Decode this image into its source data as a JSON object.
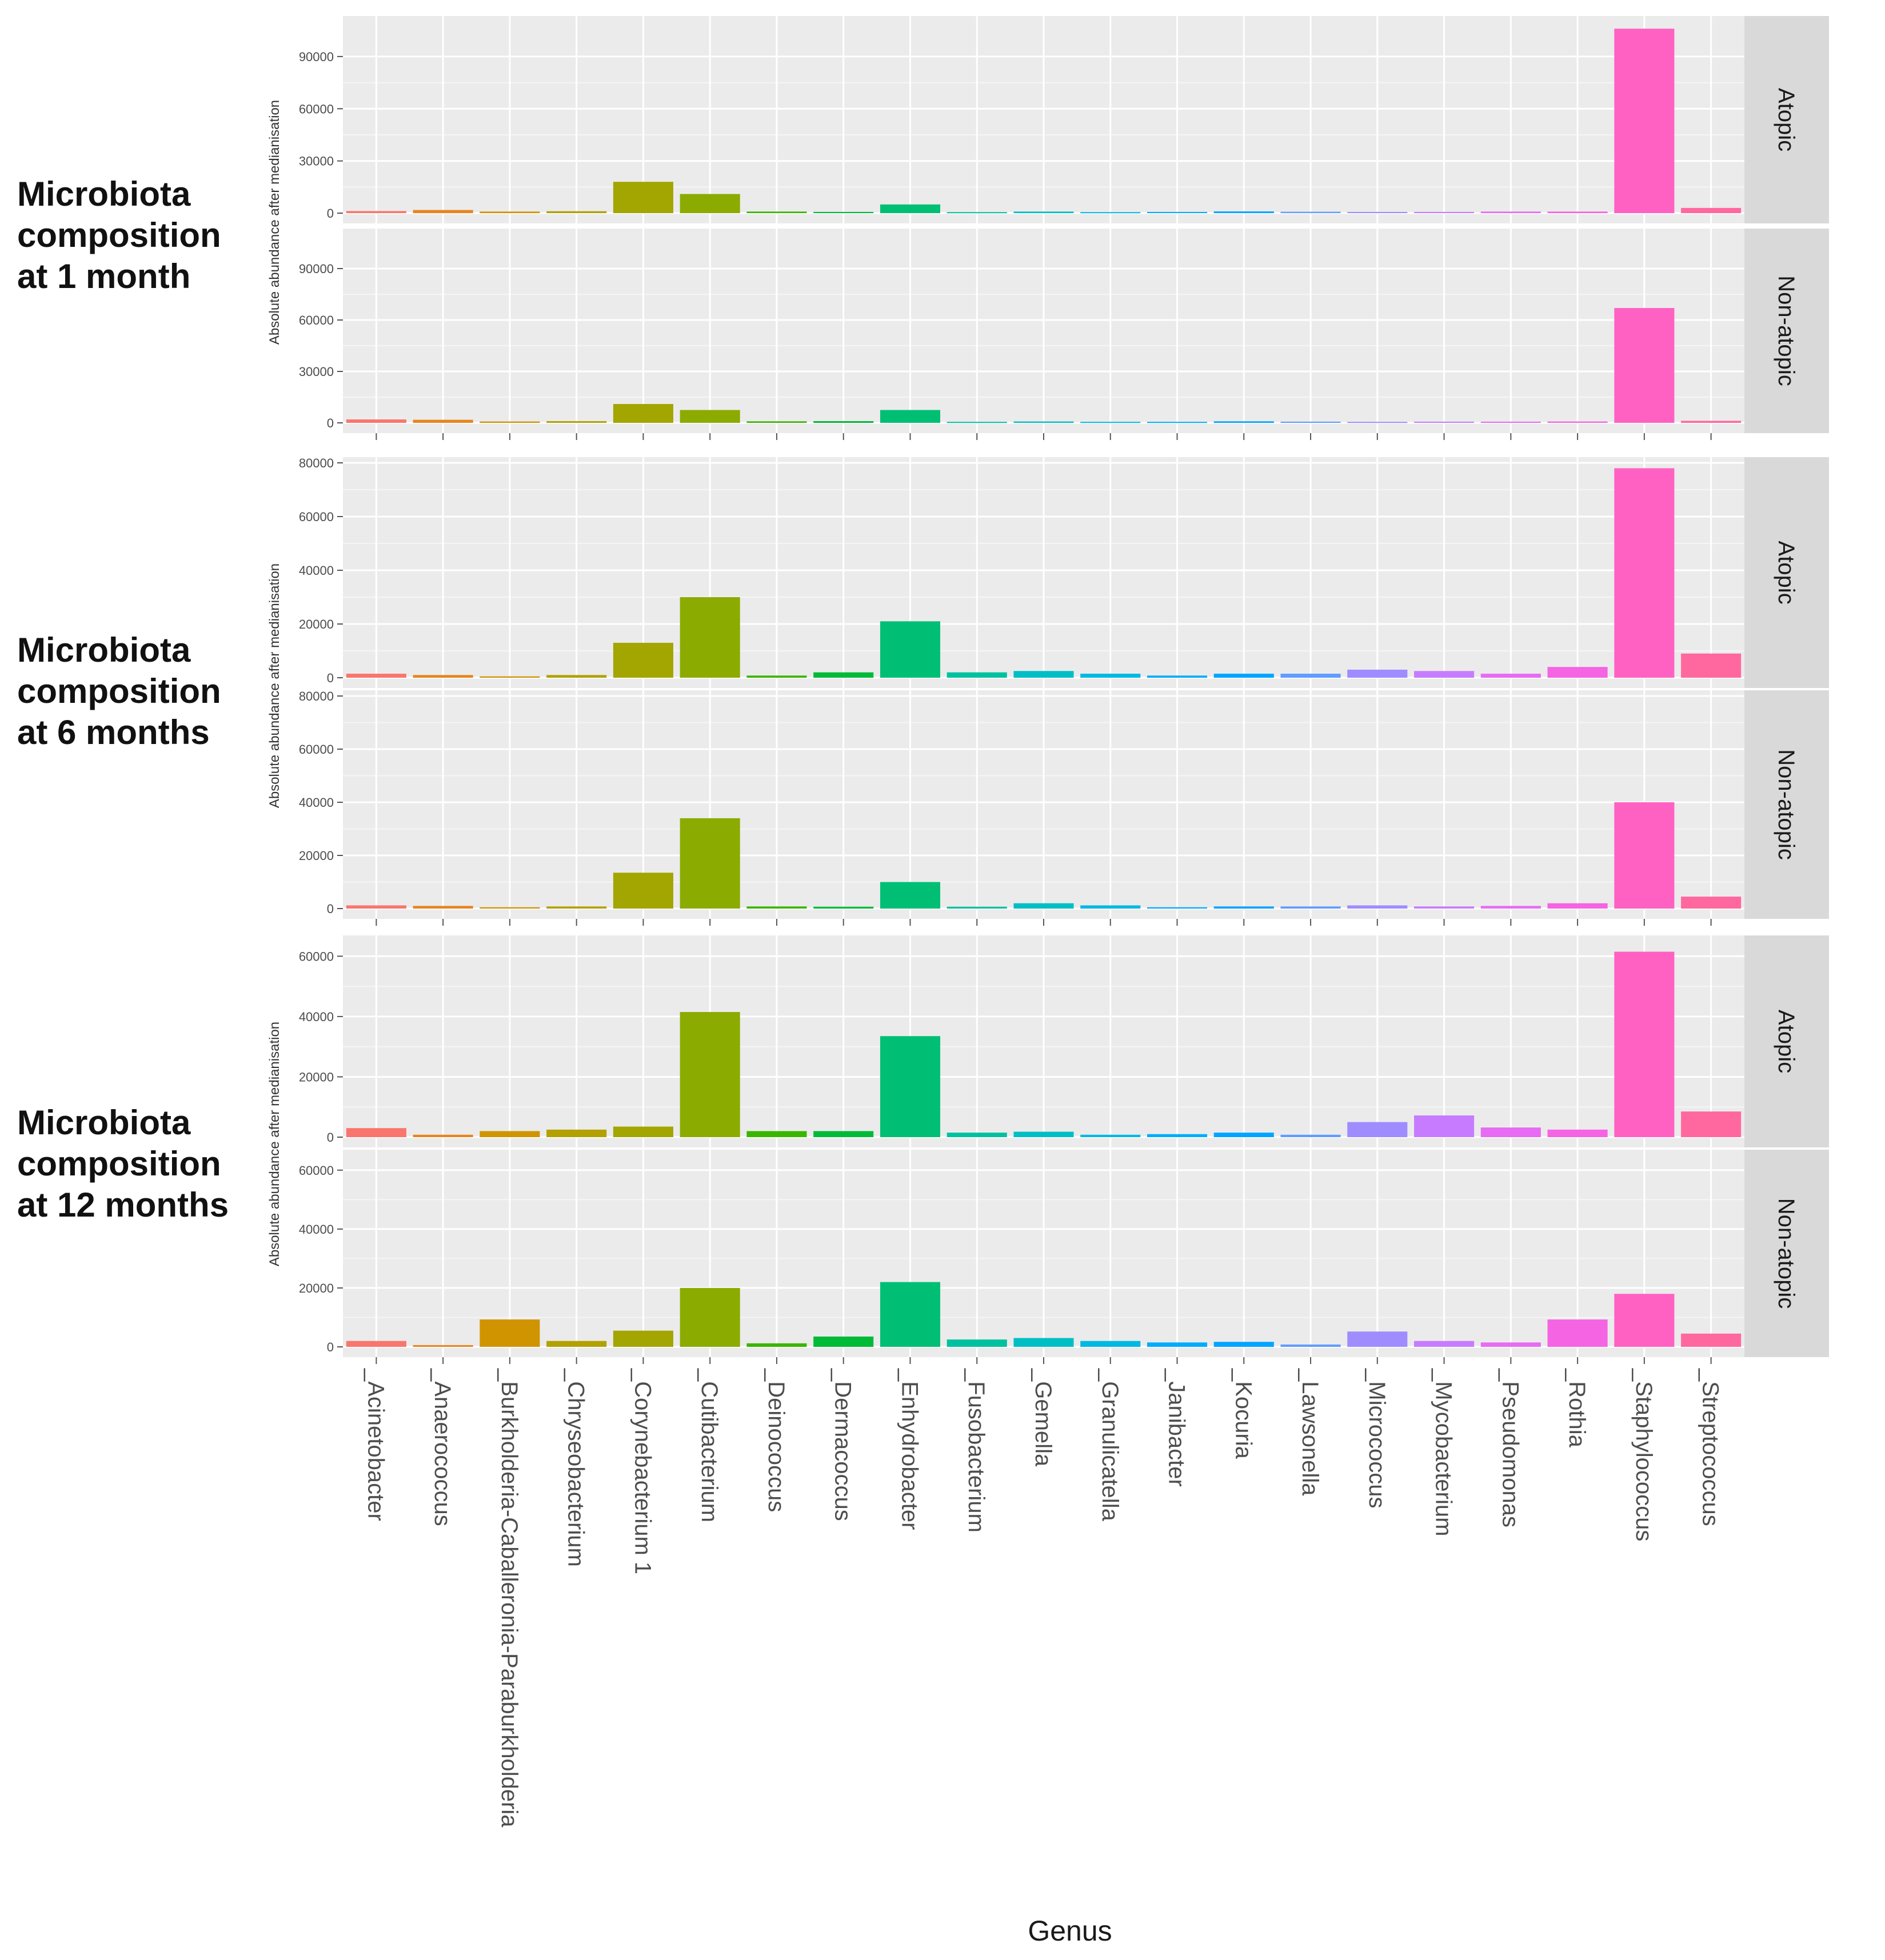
{
  "chart_data": {
    "type": "bar",
    "facet_layout": "three time points, each faceted by group (Atopic / Non-atopic), shared x axis",
    "xlabel": "Genus",
    "ylabel": "Absolute abundance after medianisation",
    "categories": [
      "Acinetobacter",
      "Anaerococcus",
      "Burkholderia-Caballeronia-Paraburkholderia",
      "Chryseobacterium",
      "Corynebacterium 1",
      "Cutibacterium",
      "Deinococcus",
      "Dermacoccus",
      "Enhydrobacter",
      "Fusobacterium",
      "Gemella",
      "Granulicatella",
      "Janibacter",
      "Kocuria",
      "Lawsonella",
      "Micrococcus",
      "Mycobacterium",
      "Pseudomonas",
      "Rothia",
      "Staphylococcus",
      "Streptococcus"
    ],
    "x_tick_labels": [
      "_Acinetobacter",
      "_Anaerococcus",
      "_Burkholderia-Caballeronia-Paraburkholderia",
      "_Chryseobacterium",
      "_Corynebacterium 1",
      "_Cutibacterium",
      "_Deinococcus",
      "_Dermacoccus",
      "_Enhydrobacter",
      "_Fusobacterium",
      "_Gemella",
      "_Granulicatella",
      "_Janibacter",
      "_Kocuria",
      "_Lawsonella",
      "_Micrococcus",
      "_Mycobacterium",
      "_Pseudomonas",
      "_Rothia",
      "_Staphylococcus",
      "_Streptococcus"
    ],
    "colors": [
      "#F8766D",
      "#E7851E",
      "#D09400",
      "#B2A100",
      "#A3A500",
      "#8BAB00",
      "#39B600",
      "#00BA38",
      "#00BF74",
      "#00C19F",
      "#00BFC4",
      "#00B9E3",
      "#00ADFA",
      "#00A5FF",
      "#619CFF",
      "#9F8CFF",
      "#C77CFF",
      "#E76BF3",
      "#F564E3",
      "#FF61C3",
      "#FF689F"
    ],
    "panels": [
      {
        "section": "Microbiota\ncomposition\nat 1 month",
        "ylim": [
          0,
          110000
        ],
        "yticks": [
          0,
          30000,
          60000,
          90000
        ],
        "ytick_labels": [
          "0",
          "30000",
          "60000",
          "90000"
        ],
        "show_x_ticks": true,
        "facets": [
          {
            "name": "Atopic",
            "values": [
              1200,
              1800,
              900,
              1100,
              18000,
              11000,
              900,
              700,
              5000,
              600,
              900,
              600,
              700,
              1000,
              800,
              700,
              700,
              900,
              900,
              106000,
              3000
            ]
          },
          {
            "name": "Non-atopic",
            "values": [
              2000,
              1800,
              800,
              1000,
              11000,
              7500,
              900,
              1000,
              7500,
              600,
              800,
              600,
              600,
              900,
              700,
              600,
              700,
              700,
              800,
              67000,
              1200
            ]
          }
        ]
      },
      {
        "section": "Microbiota\ncomposition\nat 6 months",
        "ylim": [
          0,
          80000
        ],
        "yticks": [
          0,
          20000,
          40000,
          60000,
          80000
        ],
        "ytick_labels": [
          "0",
          "20000",
          "40000",
          "60000",
          "80000"
        ],
        "show_x_ticks": true,
        "facets": [
          {
            "name": "Atopic",
            "values": [
              1500,
              1000,
              500,
              1000,
              13000,
              30000,
              800,
              2000,
              21000,
              2000,
              2500,
              1500,
              800,
              1500,
              1500,
              3000,
              2500,
              1500,
              4000,
              78000,
              9000
            ]
          },
          {
            "name": "Non-atopic",
            "values": [
              1200,
              1000,
              500,
              800,
              13500,
              34000,
              800,
              700,
              10000,
              700,
              2000,
              1200,
              500,
              800,
              800,
              1200,
              800,
              1000,
              2000,
              40000,
              4500
            ]
          }
        ]
      },
      {
        "section": "Microbiota\ncomposition\nat 12 months",
        "ylim": [
          0,
          65000
        ],
        "yticks": [
          0,
          20000,
          40000,
          60000
        ],
        "ytick_labels": [
          "0",
          "20000",
          "40000",
          "60000"
        ],
        "show_x_ticks": false,
        "facets": [
          {
            "name": "Atopic",
            "values": [
              3000,
              800,
              2000,
              2500,
              3500,
              41500,
              2000,
              2000,
              33500,
              1500,
              1800,
              800,
              1000,
              1500,
              800,
              5000,
              7200,
              3200,
              2500,
              61500,
              8500
            ]
          },
          {
            "name": "Non-atopic",
            "values": [
              2000,
              600,
              9300,
              2000,
              5500,
              20000,
              1200,
              3500,
              22000,
              2500,
              3000,
              2000,
              1500,
              1700,
              800,
              5200,
              2000,
              1500,
              9300,
              18000,
              4500
            ]
          }
        ]
      }
    ]
  }
}
